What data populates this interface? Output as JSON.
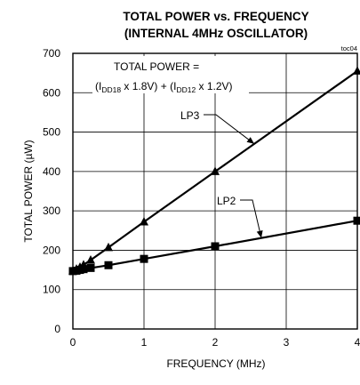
{
  "chart_data": {
    "type": "line",
    "title_line1": "TOTAL POWER vs. FREQUENCY",
    "title_line2": "(INTERNAL 4MHz OSCILLATOR)",
    "tag": "toc04",
    "xlabel": "FREQUENCY (MHz)",
    "ylabel": "TOTAL POWER (µW)",
    "xlim": [
      0,
      4
    ],
    "ylim": [
      0,
      700
    ],
    "x_ticks": [
      "0",
      "1",
      "2",
      "3",
      "4"
    ],
    "y_ticks": [
      "0",
      "100",
      "200",
      "300",
      "400",
      "500",
      "600",
      "700"
    ],
    "grid": true,
    "annotation": {
      "line1": "TOTAL POWER =",
      "open": "(I",
      "sub1": "DD18",
      "mid": " x 1.8V) + (I",
      "sub2": "DD12",
      "end": " x 1.2V)"
    },
    "series": [
      {
        "name": "LP3",
        "marker": "triangle",
        "x": [
          0,
          0.05,
          0.1,
          0.15,
          0.25,
          0.5,
          1,
          2,
          4
        ],
        "y": [
          148,
          152,
          157,
          163,
          175,
          207,
          272,
          400,
          655
        ]
      },
      {
        "name": "LP2",
        "marker": "square",
        "x": [
          0,
          0.05,
          0.1,
          0.15,
          0.25,
          0.5,
          1,
          2,
          4
        ],
        "y": [
          147,
          148,
          150,
          152,
          155,
          162,
          178,
          210,
          275
        ]
      }
    ]
  }
}
